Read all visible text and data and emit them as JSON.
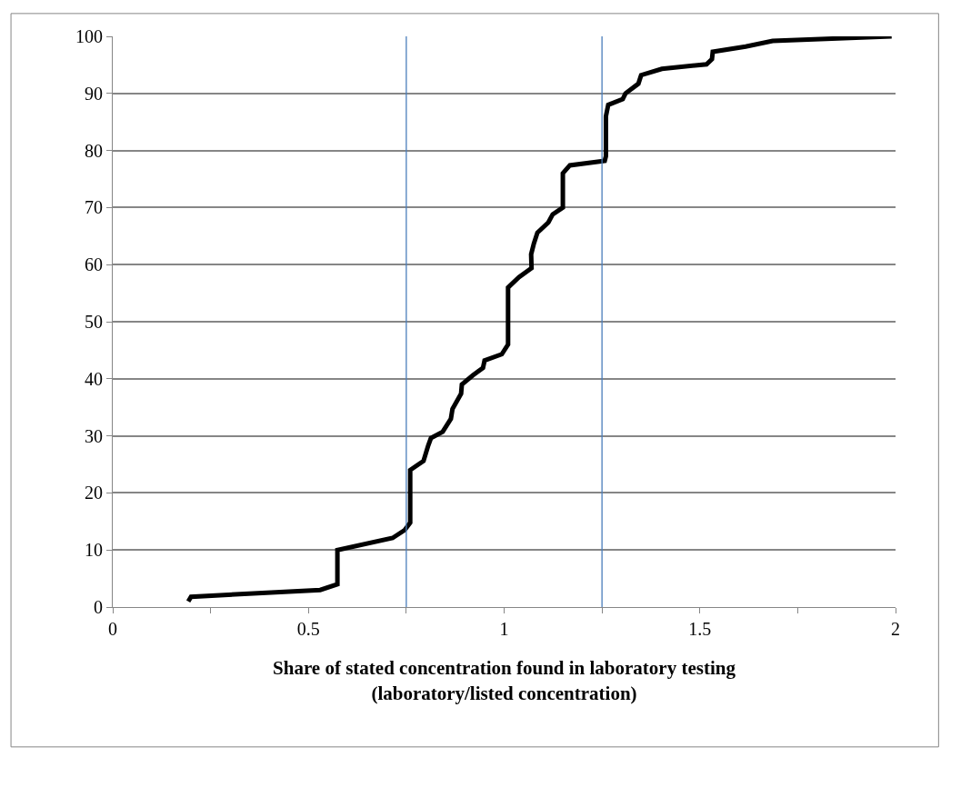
{
  "chart_data": {
    "type": "line",
    "xlabel": "Share of stated concentration found in laboratory testing\n(laboratory/listed concentration)",
    "x": [
      0.193,
      0.2,
      0.53,
      0.574,
      0.574,
      0.715,
      0.746,
      0.76,
      0.76,
      0.794,
      0.806,
      0.813,
      0.843,
      0.864,
      0.868,
      0.89,
      0.892,
      0.92,
      0.946,
      0.95,
      0.994,
      1.01,
      1.01,
      1.038,
      1.07,
      1.069,
      1.076,
      1.085,
      1.113,
      1.124,
      1.15,
      1.15,
      1.168,
      1.257,
      1.26,
      1.26,
      1.266,
      1.303,
      1.31,
      1.343,
      1.35,
      1.403,
      1.517,
      1.531,
      1.533,
      1.617,
      1.686,
      1.99
    ],
    "series": [
      {
        "color": "#000000",
        "values": [
          1,
          1.8,
          3,
          4,
          10,
          12.1,
          13.5,
          14.8,
          24,
          25.6,
          28.3,
          29.6,
          30.7,
          33,
          34.7,
          37.4,
          39,
          40.6,
          41.9,
          43.2,
          44.3,
          46,
          56,
          57.8,
          59.4,
          61.8,
          63.7,
          65.6,
          67.4,
          68.8,
          70,
          76,
          77.4,
          78.2,
          79,
          86,
          88,
          89,
          90,
          91.7,
          93.2,
          94.3,
          95.1,
          96,
          97.3,
          98.2,
          99.2,
          100
        ]
      }
    ],
    "xlim": [
      0,
      2
    ],
    "xticks": [
      0,
      {
        "value": 0.25,
        "label": null
      },
      0.5,
      {
        "value": 0.75,
        "label": null
      },
      1,
      {
        "value": 1.25,
        "label": null
      },
      1.5,
      {
        "value": 1.75,
        "label": null
      },
      2
    ],
    "ylim": [
      0,
      100
    ],
    "yticks": [
      0,
      10,
      20,
      30,
      40,
      50,
      60,
      70,
      80,
      90,
      100
    ],
    "grid": "y",
    "marker": "none",
    "line_style": "solid",
    "ref_lines": [
      {
        "axis": "x",
        "value": 0.75,
        "color": "#4a7ebb"
      },
      {
        "axis": "x",
        "value": 1.25,
        "color": "#4a7ebb"
      }
    ]
  }
}
